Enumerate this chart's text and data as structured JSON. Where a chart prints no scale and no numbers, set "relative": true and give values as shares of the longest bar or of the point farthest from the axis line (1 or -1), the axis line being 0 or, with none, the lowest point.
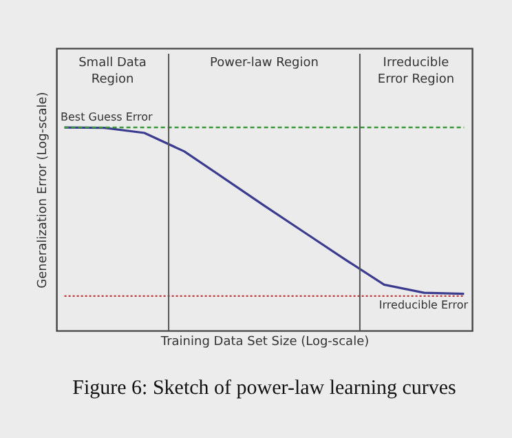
{
  "chart_data": {
    "type": "line",
    "relative": true,
    "title": "Figure 6: Sketch of power-law learning curves",
    "xlabel": "Training Data Set Size (Log-scale)",
    "ylabel": "Generalization Error (Log-scale)",
    "categories": [
      null,
      null,
      null,
      null,
      null,
      null,
      null,
      null,
      null,
      null,
      null
    ],
    "series": [
      {
        "color": "#3b3b8f",
        "values": [
          1,
          0.998,
          0.973,
          0.882,
          0.749,
          0.615,
          0.484,
          0.353,
          0.226,
          0.186,
          0.181
        ]
      },
      {
        "name": "Best Guess Error",
        "color": "#3a9a3a",
        "line_style": "dashed",
        "values": [
          1,
          1,
          1,
          1,
          1,
          1,
          1,
          1,
          1,
          1,
          1
        ]
      },
      {
        "name": "Irreducible Error",
        "color": "#c0393b",
        "line_style": "dotted",
        "values": [
          0.17,
          0.17,
          0.17,
          0.17,
          0.17,
          0.17,
          0.17,
          0.17,
          0.17,
          0.17,
          0.17
        ]
      }
    ],
    "annotations": [
      "Small Data Region",
      "Power-law Region",
      "Irreducible Error Region"
    ],
    "legend": false,
    "marker": "none",
    "line_style": "solid"
  }
}
